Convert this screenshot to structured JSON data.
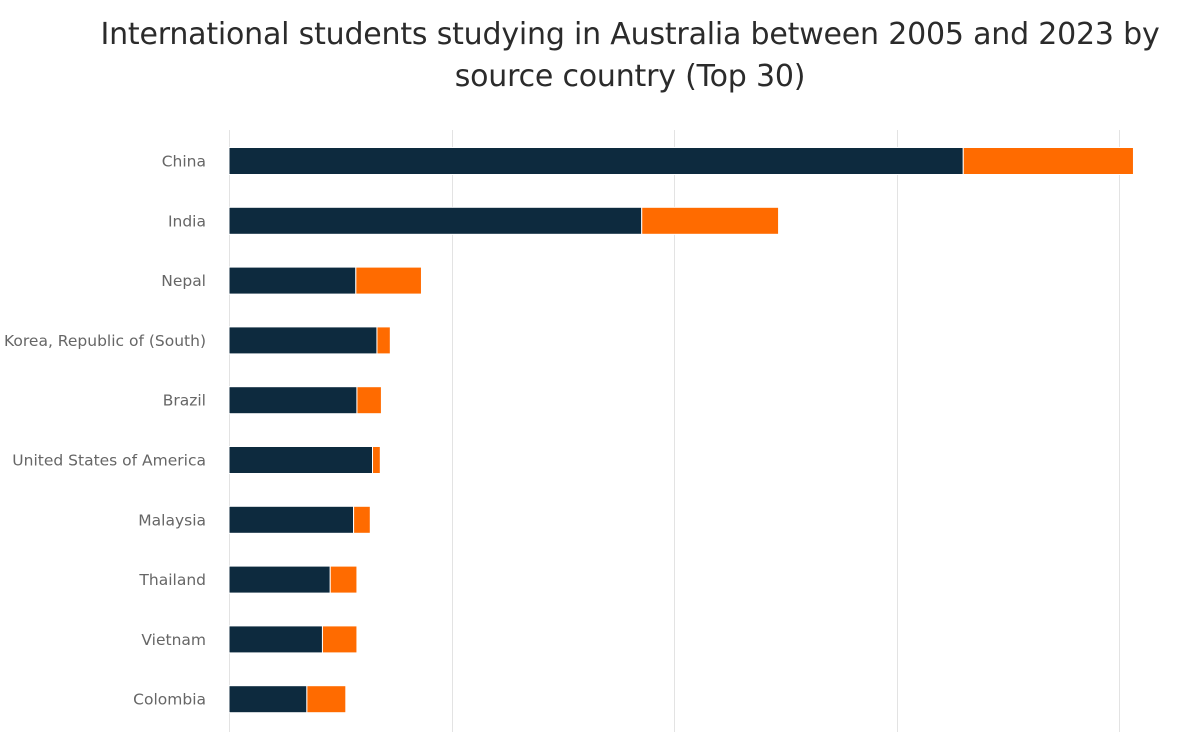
{
  "chart_data": {
    "type": "bar",
    "orientation": "horizontal",
    "stacked": true,
    "title": "International students studying in Australia between 2005 and 2023 by source country (Top 30)",
    "categories": [
      "China",
      "India",
      "Nepal",
      "Korea, Republic of (South)",
      "Brazil",
      "United States of America",
      "Malaysia",
      "Thailand",
      "Vietnam",
      "Colombia"
    ],
    "series": [
      {
        "color": "#0d2a3e",
        "values": [
          330,
          185.5,
          57,
          66.5,
          57.5,
          64.5,
          56,
          45.5,
          42,
          35
        ]
      },
      {
        "color": "#ff6b00",
        "values": [
          76.5,
          61.5,
          29.5,
          6,
          11,
          3.5,
          7.5,
          12,
          15.5,
          17.5
        ]
      }
    ],
    "xlim": [
      0,
      400
    ],
    "gridlines": [
      0,
      100,
      200,
      300,
      400
    ],
    "grid": true,
    "legend": "none"
  }
}
